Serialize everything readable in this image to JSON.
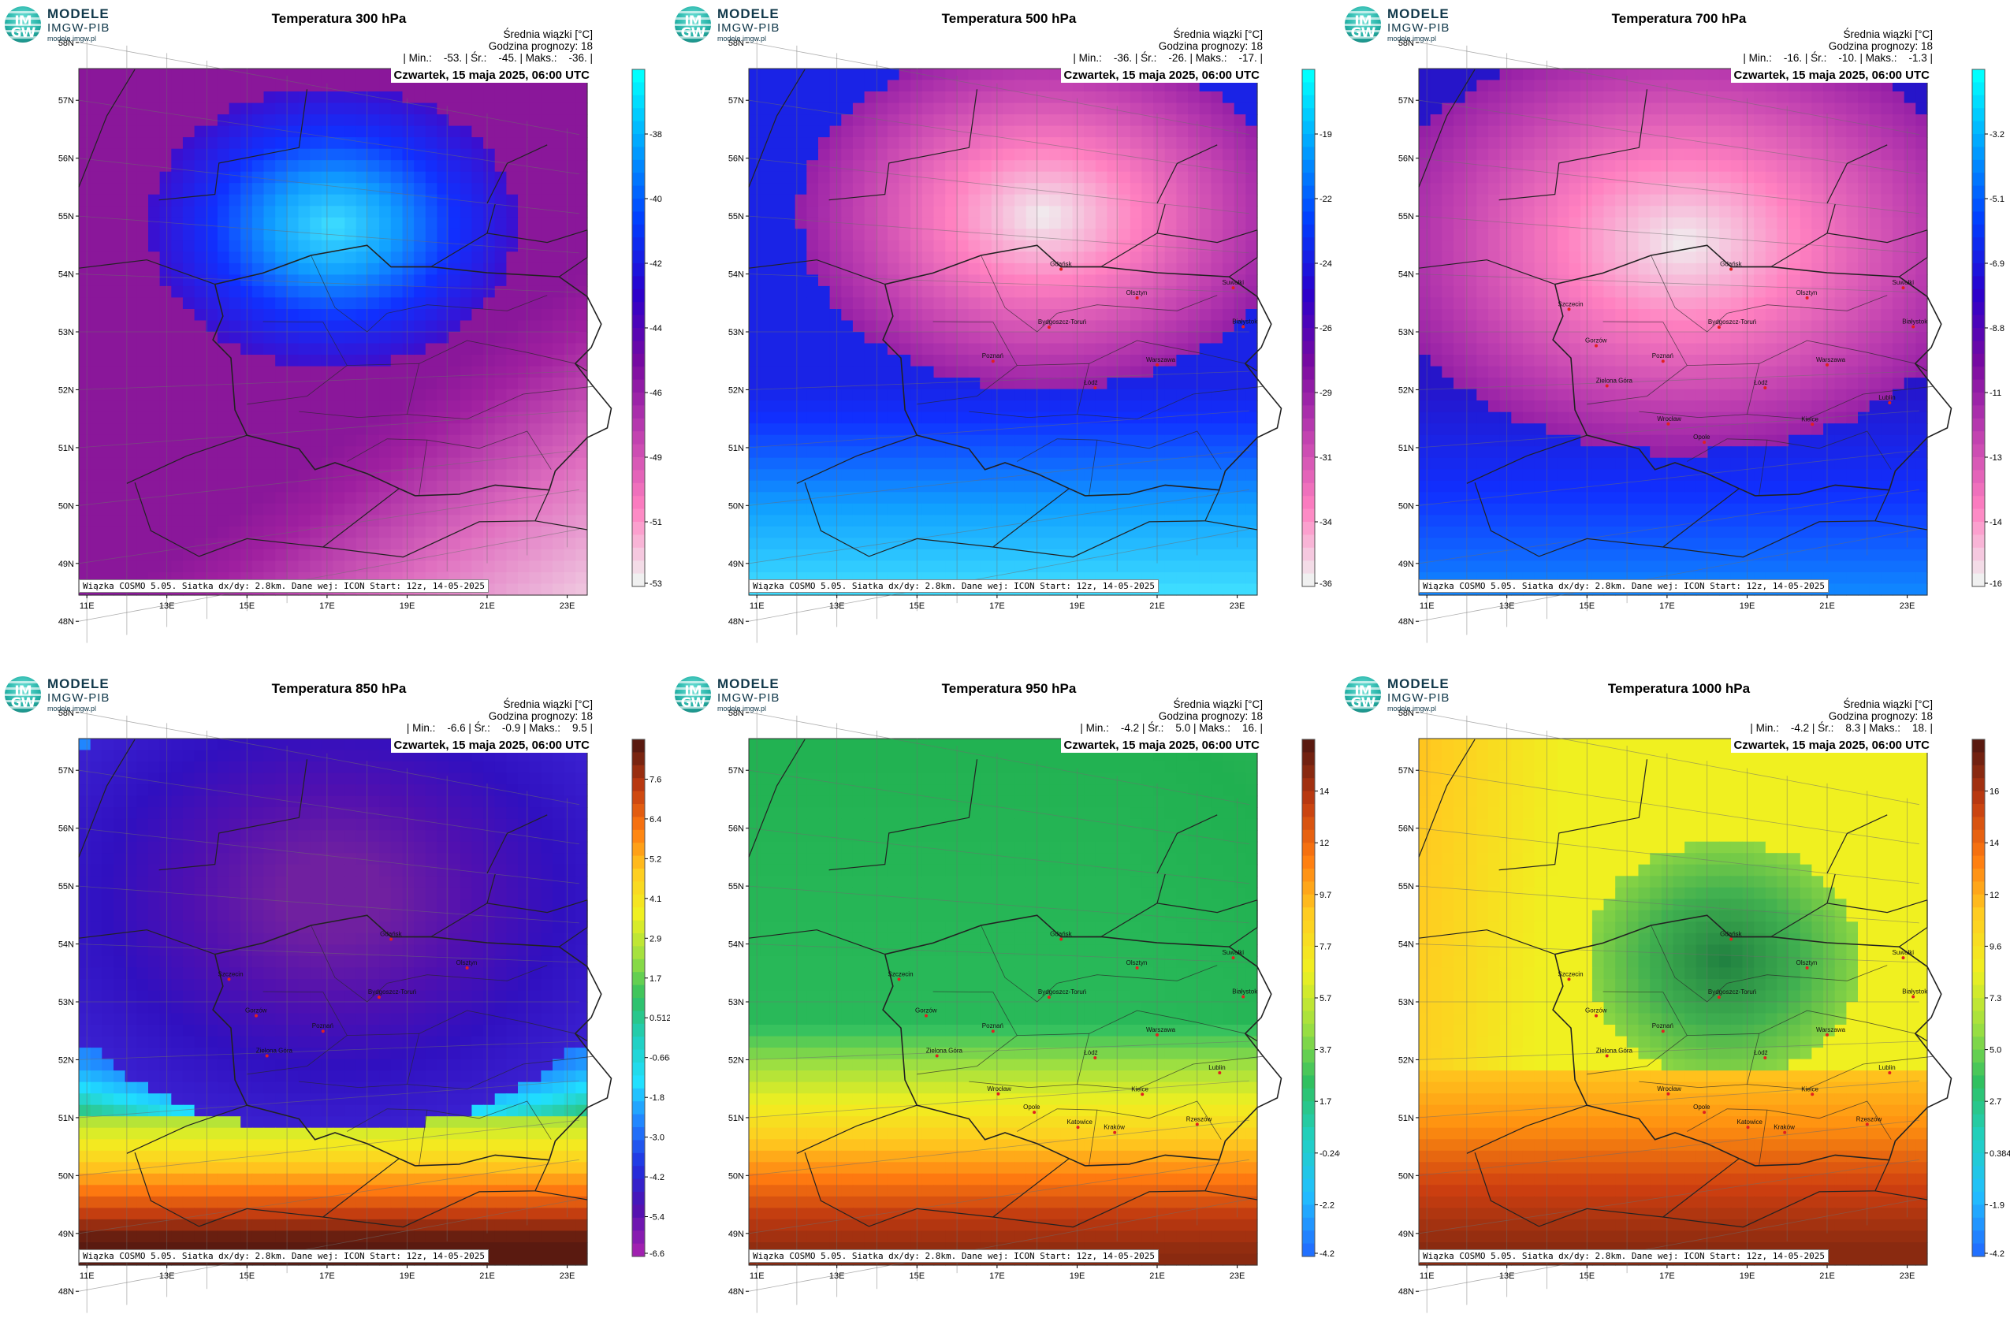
{
  "branding": {
    "mark_line1": "IM",
    "mark_line2": "GW",
    "name_line1": "MODELE",
    "name_line2": "IMGW-PIB",
    "url": "modele.imgw.pl"
  },
  "common": {
    "meta_line1": "Średnia wiązki [°C]",
    "meta_line2": "Godzina prognozy: 18",
    "date_text": "Czwartek, 15 maja 2025, 06:00 UTC",
    "footer_text": "Wiązka COSMO 5.05. Siatka dx/dy: 2.8km. Dane wej: ICON Start: 12z, 14-05-2025",
    "lat_labels": [
      "58N",
      "57N",
      "56N",
      "55N",
      "54N",
      "53N",
      "52N",
      "51N",
      "50N",
      "49N",
      "48N"
    ],
    "lon_labels": [
      "11E",
      "13E",
      "15E",
      "17E",
      "19E",
      "21E",
      "23E"
    ]
  },
  "panels": [
    {
      "title": "Temperatura 300 hPa",
      "stats_line": "| Min.:    -53. | Śr.:    -45. | Maks.:    -36. |",
      "colorbar_ticks": [
        "-38",
        "-40",
        "-42",
        "-44",
        "-46",
        "-49",
        "-51",
        "-53"
      ],
      "colorbar_colors": [
        "#00ffff",
        "#00a0ff",
        "#0040ff",
        "#2a00cc",
        "#7a0aa0",
        "#c040b0",
        "#ff80c0",
        "#f0f0f0"
      ],
      "scheme": "p300",
      "cities": []
    },
    {
      "title": "Temperatura 500 hPa",
      "stats_line": "| Min.:    -36. | Śr.:    -26. | Maks.:    -17. |",
      "colorbar_ticks": [
        "-19",
        "-22",
        "-24",
        "-26",
        "-29",
        "-31",
        "-34",
        "-36"
      ],
      "colorbar_colors": [
        "#00ffff",
        "#00a0ff",
        "#0040ff",
        "#2a00cc",
        "#7a0aa0",
        "#c040b0",
        "#ff80c0",
        "#f0f0f0"
      ],
      "scheme": "p500",
      "cities": [
        {
          "name": "Gdańsk",
          "lon": 18.6,
          "lat": 54.35
        },
        {
          "name": "Olsztyn",
          "lon": 20.5,
          "lat": 53.78
        },
        {
          "name": "Suwałki",
          "lon": 22.9,
          "lat": 54.1
        },
        {
          "name": "Białystok",
          "lon": 23.15,
          "lat": 53.13
        },
        {
          "name": "Bydgoszcz-Toruń",
          "lon": 18.3,
          "lat": 53.1
        },
        {
          "name": "Poznań",
          "lon": 16.9,
          "lat": 52.4
        },
        {
          "name": "Warszawa",
          "lon": 21.0,
          "lat": 52.23
        },
        {
          "name": "Łódź",
          "lon": 19.45,
          "lat": 51.76
        }
      ]
    },
    {
      "title": "Temperatura 700 hPa",
      "stats_line": "| Min.:    -16. | Śr.:    -10. | Maks.:    -1.3 |",
      "colorbar_ticks": [
        "-3.2",
        "-5.1",
        "-6.9",
        "-8.8",
        "-11",
        "-13",
        "-14",
        "-16"
      ],
      "colorbar_colors": [
        "#00ffff",
        "#00a0ff",
        "#0040ff",
        "#2a00cc",
        "#7a0aa0",
        "#c040b0",
        "#ff80c0",
        "#f0f0f0"
      ],
      "scheme": "p700",
      "cities": [
        {
          "name": "Gdańsk",
          "lon": 18.6,
          "lat": 54.35
        },
        {
          "name": "Olsztyn",
          "lon": 20.5,
          "lat": 53.78
        },
        {
          "name": "Suwałki",
          "lon": 22.9,
          "lat": 54.1
        },
        {
          "name": "Szczecin",
          "lon": 14.55,
          "lat": 53.43
        },
        {
          "name": "Białystok",
          "lon": 23.15,
          "lat": 53.13
        },
        {
          "name": "Bydgoszcz-Toruń",
          "lon": 18.3,
          "lat": 53.1
        },
        {
          "name": "Gorzów",
          "lon": 15.23,
          "lat": 52.73
        },
        {
          "name": "Poznań",
          "lon": 16.9,
          "lat": 52.4
        },
        {
          "name": "Warszawa",
          "lon": 21.0,
          "lat": 52.23
        },
        {
          "name": "Zielona Góra",
          "lon": 15.5,
          "lat": 51.94
        },
        {
          "name": "Łódź",
          "lon": 19.45,
          "lat": 51.76
        },
        {
          "name": "Lublin",
          "lon": 22.56,
          "lat": 51.25
        },
        {
          "name": "Wrocław",
          "lon": 17.03,
          "lat": 51.11
        },
        {
          "name": "Kielce",
          "lon": 20.63,
          "lat": 50.87
        },
        {
          "name": "Opole",
          "lon": 17.93,
          "lat": 50.67
        }
      ]
    },
    {
      "title": "Temperatura 850 hPa",
      "stats_line": "| Min.:    -6.6 | Śr.:    -0.9 | Maks.:    9.5 |",
      "colorbar_ticks": [
        "7.6",
        "6.4",
        "5.2",
        "4.1",
        "2.9",
        "1.7",
        "0.512",
        "-0.668",
        "-1.8",
        "-3.0",
        "-4.2",
        "-5.4",
        "-6.6"
      ],
      "colorbar_colors": [
        "#5a1a10",
        "#c03a10",
        "#ff7a10",
        "#ffcc20",
        "#f0f020",
        "#a0e040",
        "#30c060",
        "#20d0c0",
        "#20e0ff",
        "#2080ff",
        "#2030e0",
        "#5010b0",
        "#a020b0"
      ],
      "scheme": "p850",
      "cities": [
        {
          "name": "Gdańsk",
          "lon": 18.6,
          "lat": 54.35
        },
        {
          "name": "Olsztyn",
          "lon": 20.5,
          "lat": 53.78
        },
        {
          "name": "Szczecin",
          "lon": 14.55,
          "lat": 53.43
        },
        {
          "name": "Bydgoszcz-Toruń",
          "lon": 18.3,
          "lat": 53.1
        },
        {
          "name": "Gorzów",
          "lon": 15.23,
          "lat": 52.73
        },
        {
          "name": "Poznań",
          "lon": 16.9,
          "lat": 52.4
        },
        {
          "name": "Zielona Góra",
          "lon": 15.5,
          "lat": 51.94
        }
      ]
    },
    {
      "title": "Temperatura 950 hPa",
      "stats_line": "| Min.:    -4.2 | Śr.:    5.0 | Maks.:    16. |",
      "colorbar_ticks": [
        "14",
        "12",
        "9.7",
        "7.7",
        "5.7",
        "3.7",
        "1.7",
        "-0.240",
        "-2.2",
        "-4.2"
      ],
      "colorbar_colors": [
        "#5a1a10",
        "#c03a10",
        "#ff7a10",
        "#ffcc20",
        "#f0f020",
        "#a0e040",
        "#30c060",
        "#20d0c0",
        "#20c0ff",
        "#2070ff"
      ],
      "scheme": "p950",
      "cities": [
        {
          "name": "Gdańsk",
          "lon": 18.6,
          "lat": 54.35
        },
        {
          "name": "Olsztyn",
          "lon": 20.5,
          "lat": 53.78
        },
        {
          "name": "Suwałki",
          "lon": 22.9,
          "lat": 54.1
        },
        {
          "name": "Szczecin",
          "lon": 14.55,
          "lat": 53.43
        },
        {
          "name": "Białystok",
          "lon": 23.15,
          "lat": 53.13
        },
        {
          "name": "Bydgoszcz-Toruń",
          "lon": 18.3,
          "lat": 53.1
        },
        {
          "name": "Gorzów",
          "lon": 15.23,
          "lat": 52.73
        },
        {
          "name": "Poznań",
          "lon": 16.9,
          "lat": 52.4
        },
        {
          "name": "Warszawa",
          "lon": 21.0,
          "lat": 52.23
        },
        {
          "name": "Zielona Góra",
          "lon": 15.5,
          "lat": 51.94
        },
        {
          "name": "Łódź",
          "lon": 19.45,
          "lat": 51.76
        },
        {
          "name": "Lublin",
          "lon": 22.56,
          "lat": 51.25
        },
        {
          "name": "Wrocław",
          "lon": 17.03,
          "lat": 51.11
        },
        {
          "name": "Kielce",
          "lon": 20.63,
          "lat": 50.87
        },
        {
          "name": "Opole",
          "lon": 17.93,
          "lat": 50.67
        },
        {
          "name": "Rzeszów",
          "lon": 22.0,
          "lat": 50.04
        },
        {
          "name": "Katowice",
          "lon": 19.02,
          "lat": 50.26
        },
        {
          "name": "Kraków",
          "lon": 19.94,
          "lat": 50.06
        }
      ]
    },
    {
      "title": "Temperatura 1000 hPa",
      "stats_line": "| Min.:    -4.2 | Śr.:    8.3 | Maks.:    18. |",
      "colorbar_ticks": [
        "16",
        "14",
        "12",
        "9.6",
        "7.3",
        "5.0",
        "2.7",
        "0.384",
        "-1.9",
        "-4.2"
      ],
      "colorbar_colors": [
        "#5a1a10",
        "#c03a10",
        "#ff7a10",
        "#ffcc20",
        "#f0f020",
        "#a0e040",
        "#30c060",
        "#20d0c0",
        "#20c0ff",
        "#2070ff"
      ],
      "scheme": "p1000",
      "cities": [
        {
          "name": "Gdańsk",
          "lon": 18.6,
          "lat": 54.35
        },
        {
          "name": "Olsztyn",
          "lon": 20.5,
          "lat": 53.78
        },
        {
          "name": "Suwałki",
          "lon": 22.9,
          "lat": 54.1
        },
        {
          "name": "Szczecin",
          "lon": 14.55,
          "lat": 53.43
        },
        {
          "name": "Białystok",
          "lon": 23.15,
          "lat": 53.13
        },
        {
          "name": "Bydgoszcz-Toruń",
          "lon": 18.3,
          "lat": 53.1
        },
        {
          "name": "Gorzów",
          "lon": 15.23,
          "lat": 52.73
        },
        {
          "name": "Poznań",
          "lon": 16.9,
          "lat": 52.4
        },
        {
          "name": "Warszawa",
          "lon": 21.0,
          "lat": 52.23
        },
        {
          "name": "Zielona Góra",
          "lon": 15.5,
          "lat": 51.94
        },
        {
          "name": "Łódź",
          "lon": 19.45,
          "lat": 51.76
        },
        {
          "name": "Lublin",
          "lon": 22.56,
          "lat": 51.25
        },
        {
          "name": "Wrocław",
          "lon": 17.03,
          "lat": 51.11
        },
        {
          "name": "Kielce",
          "lon": 20.63,
          "lat": 50.87
        },
        {
          "name": "Opole",
          "lon": 17.93,
          "lat": 50.67
        },
        {
          "name": "Rzeszów",
          "lon": 22.0,
          "lat": 50.04
        },
        {
          "name": "Katowice",
          "lon": 19.02,
          "lat": 50.26
        },
        {
          "name": "Kraków",
          "lon": 19.94,
          "lat": 50.06
        }
      ]
    }
  ]
}
